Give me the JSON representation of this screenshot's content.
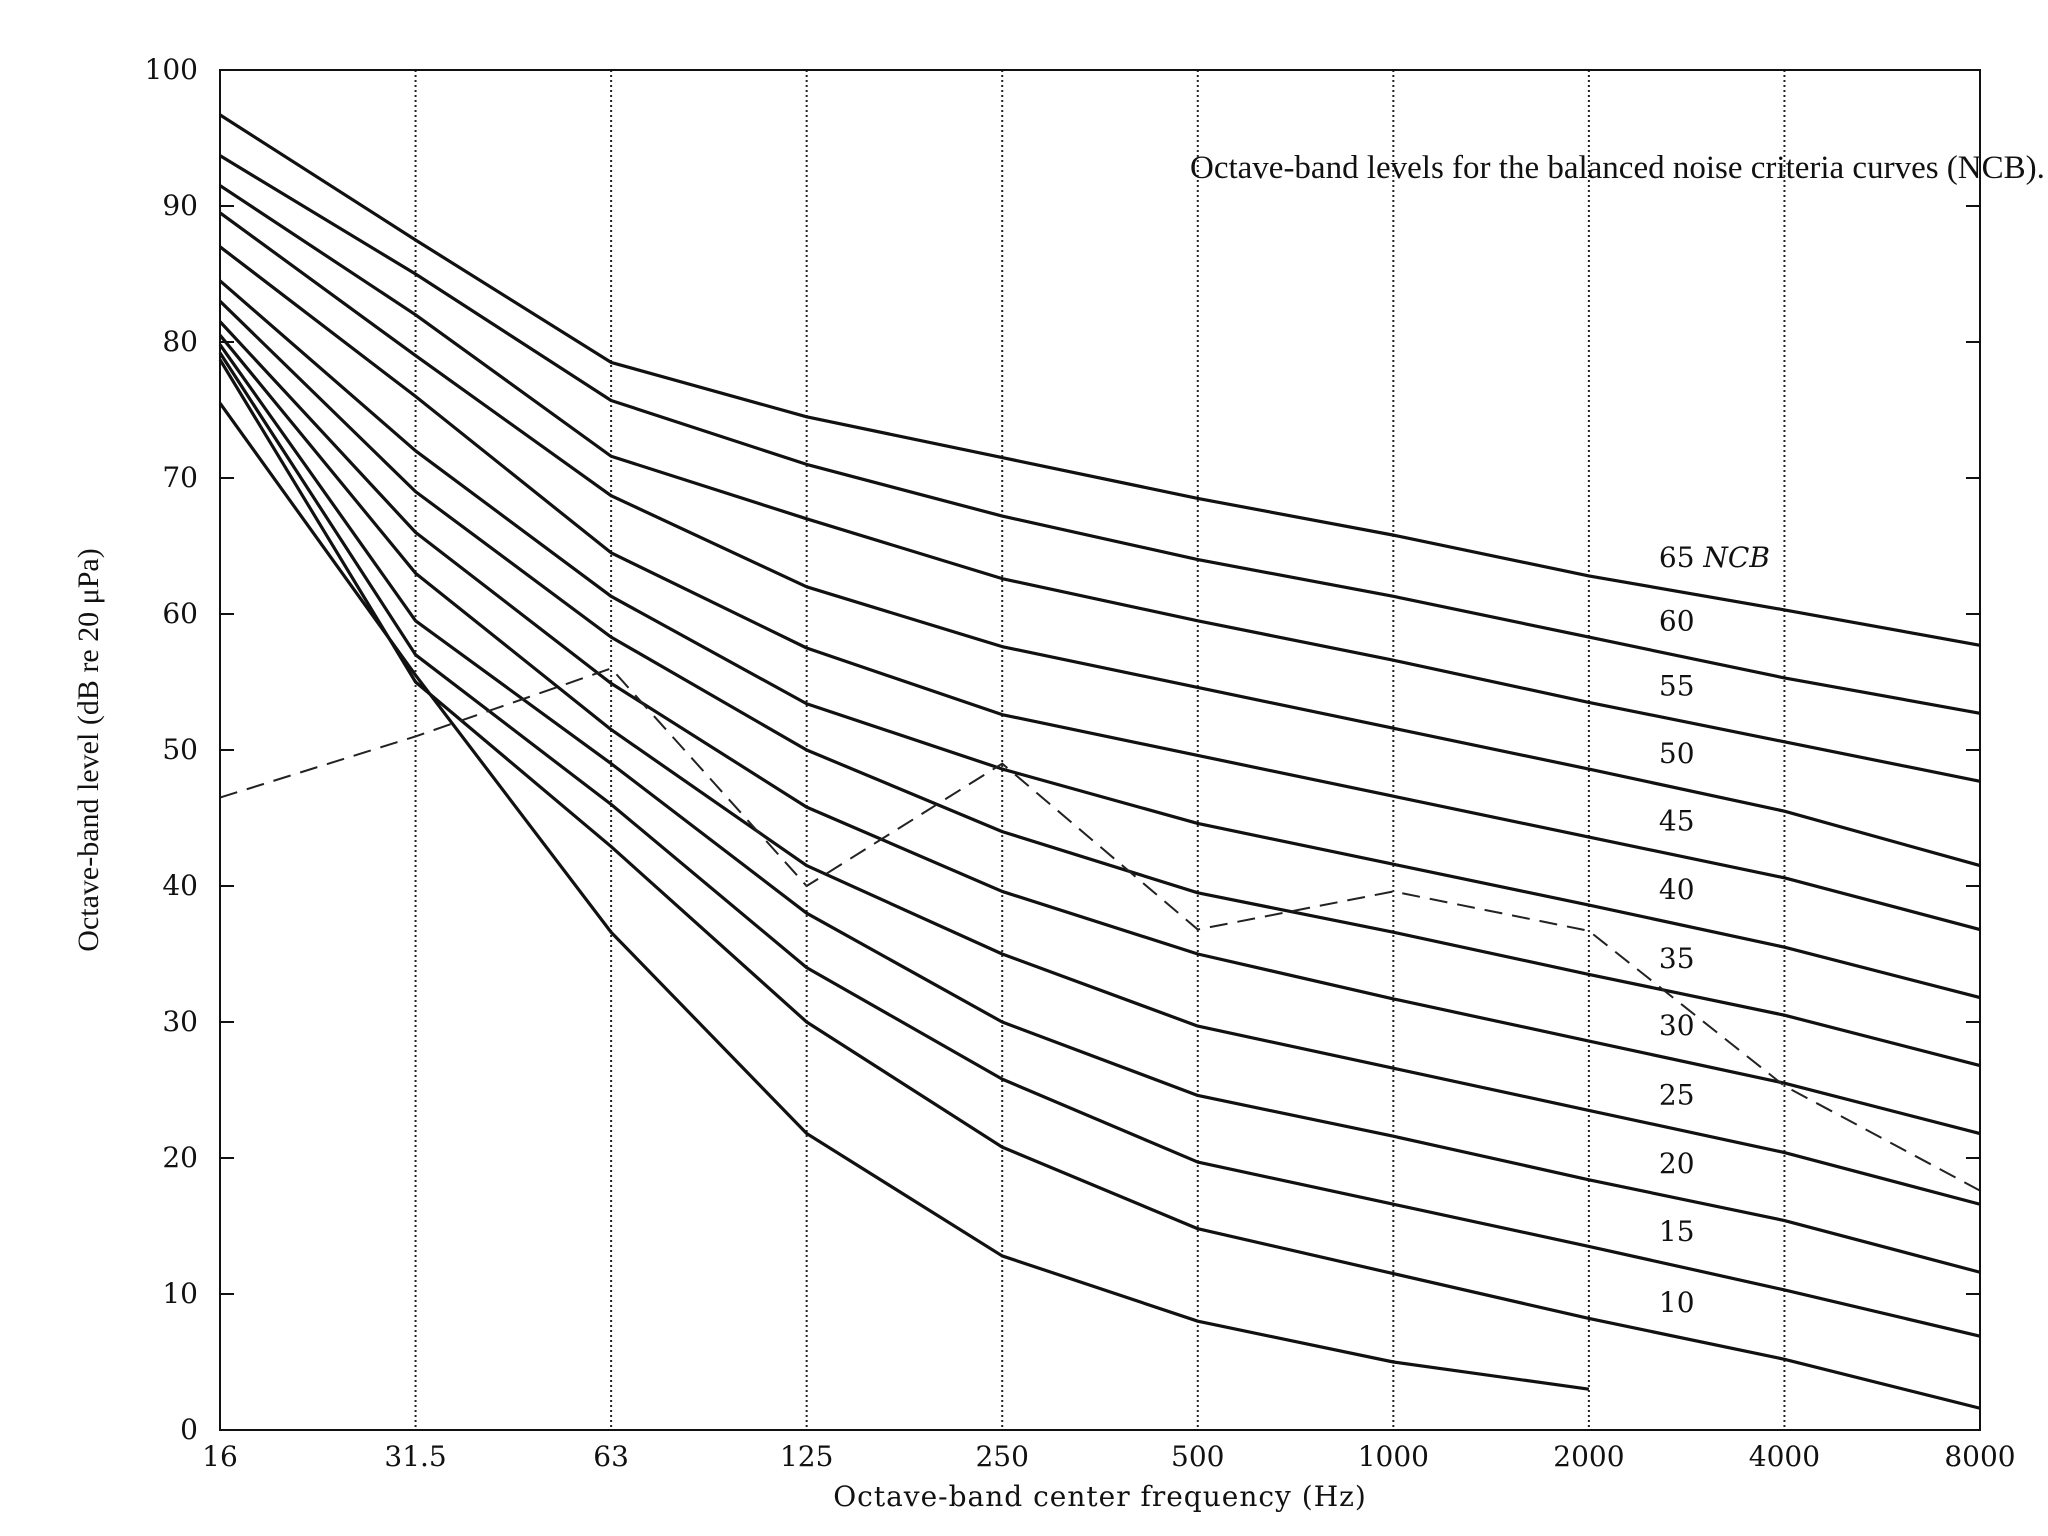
{
  "chart_data": {
    "type": "line",
    "title": "Octave-band levels for the balanced noise criteria curves (NCB).",
    "xlabel": "Octave-band center frequency (Hz)",
    "ylabel": "Octave-band level (dB re 20 μPa)",
    "x": [
      "16",
      "31.5",
      "63",
      "125",
      "250",
      "500",
      "1000",
      "2000",
      "4000",
      "8000"
    ],
    "ylim": [
      0,
      100
    ],
    "yticks": [
      0,
      10,
      20,
      30,
      40,
      50,
      60,
      70,
      80,
      90,
      100
    ],
    "grid": "vertical dotted lines at each octave band",
    "series": [
      {
        "name": "65 NCB",
        "values": [
          96.7,
          87.5,
          78.5,
          74.5,
          71.5,
          68.5,
          65.8,
          62.8,
          60.3,
          57.7
        ]
      },
      {
        "name": "60",
        "values": [
          93.7,
          85,
          75.7,
          71,
          67.2,
          64,
          61.3,
          58.3,
          55.3,
          52.7
        ]
      },
      {
        "name": "55",
        "values": [
          91.5,
          82,
          71.6,
          67,
          62.6,
          59.5,
          56.6,
          53.5,
          50.6,
          47.7
        ]
      },
      {
        "name": "50",
        "values": [
          89.5,
          79,
          68.7,
          62,
          57.6,
          54.6,
          51.6,
          48.6,
          45.5,
          41.5
        ]
      },
      {
        "name": "45",
        "values": [
          87,
          76,
          64.5,
          57.5,
          52.6,
          49.6,
          46.6,
          43.6,
          40.6,
          36.8
        ]
      },
      {
        "name": "40",
        "values": [
          84.5,
          72,
          61.3,
          53.4,
          48.6,
          44.6,
          41.6,
          38.6,
          35.5,
          31.8
        ]
      },
      {
        "name": "35",
        "values": [
          83,
          69,
          58.3,
          50,
          44,
          39.5,
          36.6,
          33.5,
          30.5,
          26.8
        ]
      },
      {
        "name": "30",
        "values": [
          81.5,
          66,
          54.9,
          45.8,
          39.6,
          35,
          31.7,
          28.6,
          25.5,
          21.8
        ]
      },
      {
        "name": "25",
        "values": [
          80.5,
          63,
          51.5,
          41.5,
          35,
          29.7,
          26.6,
          23.5,
          20.4,
          16.6
        ]
      },
      {
        "name": "20",
        "values": [
          79.8,
          59.5,
          49,
          38,
          30,
          24.6,
          21.6,
          18.4,
          15.4,
          11.6
        ]
      },
      {
        "name": "15",
        "values": [
          79.2,
          57,
          46,
          34,
          25.8,
          19.7,
          16.6,
          13.5,
          10.3,
          6.9
        ]
      },
      {
        "name": "10",
        "values": [
          78.7,
          55,
          42.9,
          30,
          20.8,
          14.8,
          11.5,
          8.2,
          5.2,
          1.6
        ]
      },
      {
        "name": "",
        "values": [
          75.5,
          55.5,
          36.6,
          21.8,
          12.8,
          8,
          5,
          3,
          null,
          null
        ]
      }
    ],
    "measured_spectrum": {
      "style": "dashed",
      "values": [
        46.5,
        51,
        56,
        40,
        49,
        36.8,
        39.6,
        36.7,
        25.3,
        17.6
      ]
    },
    "curve_labels": [
      "65 NCB",
      "60",
      "55",
      "50",
      "45",
      "40",
      "35",
      "30",
      "25",
      "20",
      "15",
      "10"
    ]
  }
}
